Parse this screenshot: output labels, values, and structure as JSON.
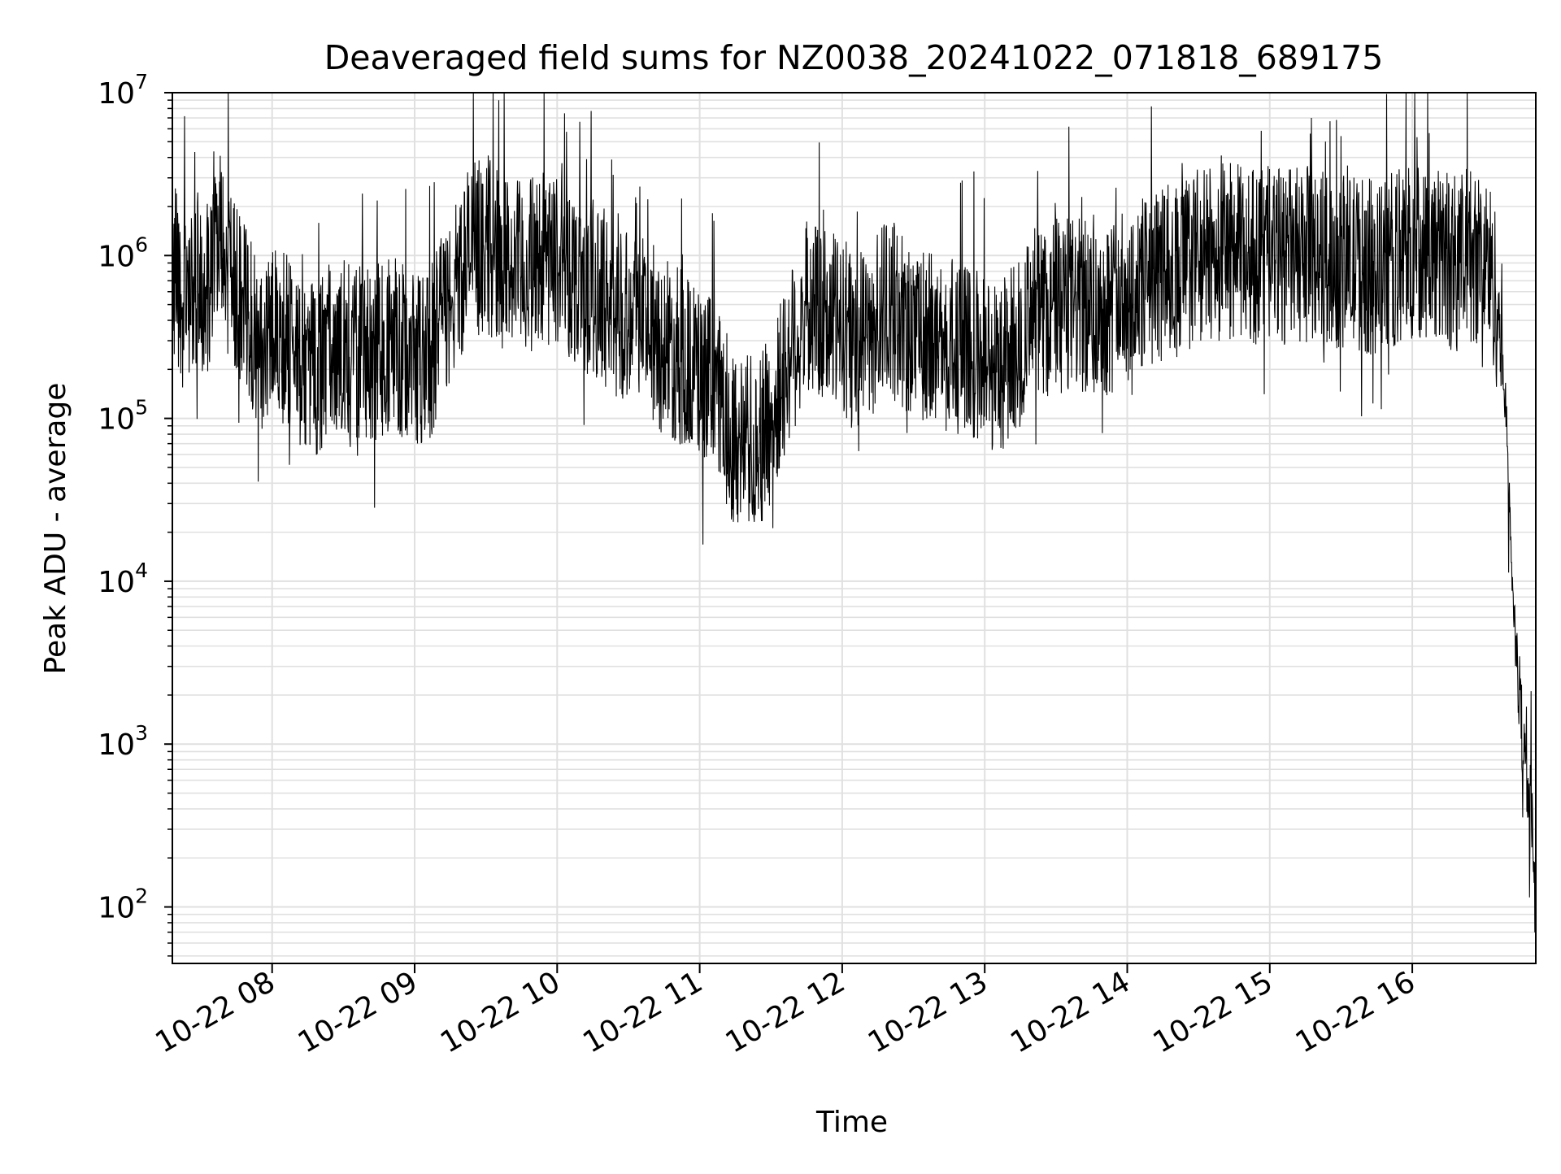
{
  "chart_data": {
    "type": "line",
    "title": "Deaveraged field sums for NZ0038_20241022_071818_689175",
    "xlabel": "Time",
    "ylabel": "Peak ADU - average",
    "yscale": "log",
    "ylim": [
      45,
      10000000
    ],
    "xlim": [
      "2024-10-22 07:18",
      "2024-10-22 16:52"
    ],
    "grid": true,
    "x_tick_labels": [
      "10-22 08",
      "10-22 09",
      "10-22 10",
      "10-22 11",
      "10-22 12",
      "10-22 13",
      "10-22 14",
      "10-22 15",
      "10-22 16"
    ],
    "y_ticks": [
      {
        "base": "10",
        "exp": "2",
        "value": 100
      },
      {
        "base": "10",
        "exp": "3",
        "value": 1000
      },
      {
        "base": "10",
        "exp": "4",
        "value": 10000
      },
      {
        "base": "10",
        "exp": "5",
        "value": 100000
      },
      {
        "base": "10",
        "exp": "6",
        "value": 1000000
      },
      {
        "base": "10",
        "exp": "7",
        "value": 10000000
      }
    ],
    "line_color": "#000000",
    "grid_color": "#e0e0e0",
    "series": [
      {
        "x": [
          "2024-10-22 07:18",
          "2024-10-22 07:22",
          "2024-10-22 07:28",
          "2024-10-22 07:34",
          "2024-10-22 07:38",
          "2024-10-22 07:42",
          "2024-10-22 07:48",
          "2024-10-22 07:55",
          "2024-10-22 08:02",
          "2024-10-22 08:10",
          "2024-10-22 08:18",
          "2024-10-22 08:26",
          "2024-10-22 08:34",
          "2024-10-22 08:42",
          "2024-10-22 08:50",
          "2024-10-22 08:58",
          "2024-10-22 09:06",
          "2024-10-22 09:14",
          "2024-10-22 09:22",
          "2024-10-22 09:30",
          "2024-10-22 09:38",
          "2024-10-22 09:46",
          "2024-10-22 09:54",
          "2024-10-22 10:02",
          "2024-10-22 10:10",
          "2024-10-22 10:18",
          "2024-10-22 10:26",
          "2024-10-22 10:34",
          "2024-10-22 10:42",
          "2024-10-22 10:50",
          "2024-10-22 10:58",
          "2024-10-22 11:06",
          "2024-10-22 11:14",
          "2024-10-22 11:22",
          "2024-10-22 11:30",
          "2024-10-22 11:38",
          "2024-10-22 11:46",
          "2024-10-22 11:54",
          "2024-10-22 12:02",
          "2024-10-22 12:10",
          "2024-10-22 12:18",
          "2024-10-22 12:26",
          "2024-10-22 12:34",
          "2024-10-22 12:42",
          "2024-10-22 12:50",
          "2024-10-22 12:58",
          "2024-10-22 13:06",
          "2024-10-22 13:14",
          "2024-10-22 13:22",
          "2024-10-22 13:30",
          "2024-10-22 13:38",
          "2024-10-22 13:46",
          "2024-10-22 13:54",
          "2024-10-22 14:02",
          "2024-10-22 14:10",
          "2024-10-22 14:18",
          "2024-10-22 14:26",
          "2024-10-22 14:34",
          "2024-10-22 14:42",
          "2024-10-22 14:50",
          "2024-10-22 14:58",
          "2024-10-22 15:06",
          "2024-10-22 15:14",
          "2024-10-22 15:22",
          "2024-10-22 15:30",
          "2024-10-22 15:38",
          "2024-10-22 15:46",
          "2024-10-22 15:54",
          "2024-10-22 16:02",
          "2024-10-22 16:10",
          "2024-10-22 16:18",
          "2024-10-22 16:26",
          "2024-10-22 16:32",
          "2024-10-22 16:36",
          "2024-10-22 16:39",
          "2024-10-22 16:41",
          "2024-10-22 16:43",
          "2024-10-22 16:45",
          "2024-10-22 16:47",
          "2024-10-22 16:49",
          "2024-10-22 16:51",
          "2024-10-22 16:52"
        ],
        "values": [
          900000,
          500000,
          700000,
          650000,
          1200000,
          700000,
          450000,
          300000,
          350000,
          250000,
          200000,
          300000,
          260000,
          250000,
          300000,
          250000,
          220000,
          500000,
          1000000,
          1200000,
          900000,
          800000,
          1000000,
          900000,
          700000,
          600000,
          450000,
          500000,
          300000,
          250000,
          200000,
          150000,
          80000,
          70000,
          90000,
          250000,
          500000,
          400000,
          350000,
          300000,
          500000,
          400000,
          300000,
          300000,
          250000,
          250000,
          200000,
          300000,
          400000,
          500000,
          500000,
          450000,
          500000,
          600000,
          700000,
          800000,
          900000,
          1000000,
          1100000,
          1000000,
          1000000,
          1000000,
          1000000,
          1000000,
          900000,
          900000,
          800000,
          1000000,
          1100000,
          1000000,
          900000,
          1000000,
          900000,
          500000,
          150000,
          30000,
          5000,
          2000,
          1000,
          500,
          250,
          80
        ]
      }
    ]
  }
}
